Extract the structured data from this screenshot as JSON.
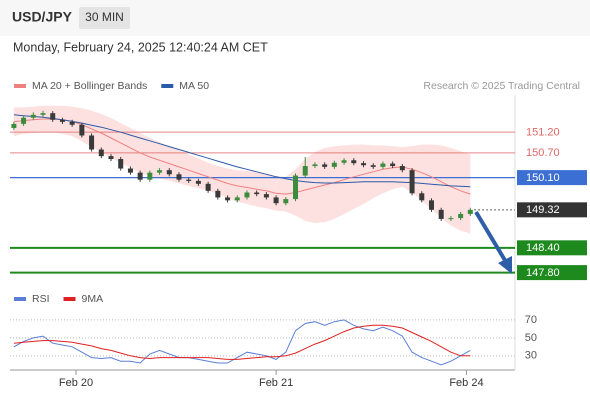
{
  "header": {
    "symbol": "USD/JPY",
    "timeframe": "30 MIN",
    "datetime": "Monday, February 24, 2025 12:40:24 AM CET",
    "copyright": "Research © 2025 Trading Central"
  },
  "chart_data": [
    {
      "type": "candlestick",
      "up_color": "#3d8b3d",
      "down_color": "#3a3a3a",
      "xlim": [
        -0.4,
        51.6
      ],
      "ylim": [
        147.5,
        152.1
      ],
      "candles": [
        [
          151.3,
          151.45,
          151.25,
          151.4
        ],
        [
          151.4,
          151.6,
          151.35,
          151.55
        ],
        [
          151.55,
          151.68,
          151.5,
          151.62
        ],
        [
          151.62,
          151.72,
          151.57,
          151.66
        ],
        [
          151.66,
          151.71,
          151.45,
          151.5
        ],
        [
          151.5,
          151.55,
          151.4,
          151.45
        ],
        [
          151.45,
          151.5,
          151.33,
          151.38
        ],
        [
          151.38,
          151.43,
          151.07,
          151.12
        ],
        [
          151.12,
          151.17,
          150.73,
          150.78
        ],
        [
          150.78,
          150.83,
          150.57,
          150.62
        ],
        [
          150.62,
          150.67,
          150.5,
          150.55
        ],
        [
          150.55,
          150.6,
          150.27,
          150.32
        ],
        [
          150.32,
          150.37,
          150.17,
          150.22
        ],
        [
          150.22,
          150.27,
          150.0,
          150.05
        ],
        [
          150.05,
          150.27,
          150.0,
          150.22
        ],
        [
          150.22,
          150.33,
          150.17,
          150.28
        ],
        [
          150.28,
          150.33,
          150.13,
          150.18
        ],
        [
          150.18,
          150.23,
          150.0,
          150.05
        ],
        [
          150.05,
          150.1,
          149.97,
          150.02
        ],
        [
          150.02,
          150.07,
          149.9,
          149.95
        ],
        [
          149.95,
          150.0,
          149.73,
          149.78
        ],
        [
          149.78,
          149.83,
          149.57,
          149.62
        ],
        [
          149.62,
          149.67,
          149.5,
          149.55
        ],
        [
          149.55,
          149.67,
          149.5,
          149.62
        ],
        [
          149.62,
          149.79,
          149.57,
          149.74
        ],
        [
          149.74,
          149.79,
          149.65,
          149.7
        ],
        [
          149.7,
          149.75,
          149.57,
          149.62
        ],
        [
          149.62,
          149.67,
          149.43,
          149.48
        ],
        [
          149.48,
          149.63,
          149.43,
          149.58
        ],
        [
          149.58,
          150.2,
          149.53,
          150.15
        ],
        [
          150.15,
          150.6,
          150.1,
          150.38
        ],
        [
          150.38,
          150.47,
          150.33,
          150.42
        ],
        [
          150.42,
          150.47,
          150.31,
          150.36
        ],
        [
          150.36,
          150.51,
          150.31,
          150.46
        ],
        [
          150.46,
          150.57,
          150.41,
          150.52
        ],
        [
          150.52,
          150.57,
          150.4,
          150.45
        ],
        [
          150.45,
          150.5,
          150.35,
          150.4
        ],
        [
          150.4,
          150.45,
          150.31,
          150.36
        ],
        [
          150.36,
          150.49,
          150.31,
          150.44
        ],
        [
          150.44,
          150.49,
          150.33,
          150.38
        ],
        [
          150.38,
          150.43,
          150.23,
          150.28
        ],
        [
          150.28,
          150.33,
          149.67,
          149.72
        ],
        [
          149.72,
          149.77,
          149.5,
          149.55
        ],
        [
          149.55,
          149.6,
          149.27,
          149.32
        ],
        [
          149.32,
          149.37,
          149.05,
          149.1
        ],
        [
          149.1,
          149.17,
          149.05,
          149.12
        ],
        [
          149.12,
          149.27,
          149.07,
          149.22
        ],
        [
          149.22,
          149.37,
          149.17,
          149.32
        ]
      ],
      "series": [
        {
          "name": "MA 20 + Bollinger Bands",
          "color": "#f08080",
          "band_color": "#fde0e0",
          "values": [
            151.45,
            151.48,
            151.5,
            151.52,
            151.52,
            151.5,
            151.46,
            151.38,
            151.28,
            151.18,
            151.06,
            150.94,
            150.82,
            150.7,
            150.6,
            150.52,
            150.44,
            150.36,
            150.28,
            150.2,
            150.12,
            150.04,
            149.96,
            149.9,
            149.86,
            149.82,
            149.78,
            149.72,
            149.7,
            149.74,
            149.8,
            149.86,
            149.92,
            149.98,
            150.05,
            150.12,
            150.18,
            150.24,
            150.3,
            150.34,
            150.36,
            150.3,
            150.22,
            150.12,
            150.0,
            149.88,
            149.78,
            149.7
          ],
          "upper": [
            151.8,
            151.8,
            151.82,
            151.84,
            151.84,
            151.84,
            151.82,
            151.78,
            151.72,
            151.64,
            151.54,
            151.42,
            151.3,
            151.18,
            151.06,
            150.96,
            150.86,
            150.76,
            150.66,
            150.56,
            150.46,
            150.38,
            150.32,
            150.28,
            150.26,
            150.24,
            150.2,
            150.14,
            150.12,
            150.3,
            150.55,
            150.72,
            150.82,
            150.86,
            150.88,
            150.9,
            150.9,
            150.88,
            150.88,
            150.86,
            150.84,
            150.86,
            150.9,
            150.9,
            150.88,
            150.82,
            150.74,
            150.66
          ],
          "lower": [
            151.1,
            151.16,
            151.18,
            151.2,
            151.2,
            151.16,
            151.1,
            150.98,
            150.84,
            150.72,
            150.58,
            150.46,
            150.34,
            150.22,
            150.14,
            150.08,
            150.02,
            149.96,
            149.9,
            149.84,
            149.78,
            149.7,
            149.6,
            149.52,
            149.46,
            149.4,
            149.36,
            149.3,
            149.28,
            149.18,
            149.05,
            149.0,
            149.02,
            149.1,
            149.22,
            149.34,
            149.46,
            149.6,
            149.72,
            149.82,
            149.88,
            149.74,
            149.54,
            149.34,
            149.12,
            148.94,
            148.82,
            148.74
          ]
        },
        {
          "name": "MA 50",
          "color": "#2b5aa8",
          "values": [
            151.62,
            151.6,
            151.58,
            151.56,
            151.53,
            151.5,
            151.46,
            151.42,
            151.37,
            151.32,
            151.26,
            151.2,
            151.13,
            151.06,
            150.99,
            150.92,
            150.85,
            150.78,
            150.71,
            150.64,
            150.57,
            150.5,
            150.43,
            150.36,
            150.3,
            150.24,
            150.18,
            150.12,
            150.07,
            150.03,
            150.0,
            149.98,
            149.97,
            149.97,
            149.98,
            149.99,
            150.0,
            150.0,
            150.0,
            150.0,
            149.99,
            149.98,
            149.96,
            149.94,
            149.92,
            149.9,
            149.89,
            149.88
          ]
        }
      ],
      "levels": [
        {
          "value": 151.2,
          "label": "151.20",
          "color": "#e06666",
          "style": "resistance"
        },
        {
          "value": 150.7,
          "label": "150.70",
          "color": "#e06666",
          "style": "resistance"
        },
        {
          "value": 150.1,
          "label": "150.10",
          "color": "#3b6fd4",
          "style": "pivot"
        },
        {
          "value": 149.32,
          "label": "149.32",
          "color": "#333333",
          "style": "last"
        },
        {
          "value": 148.4,
          "label": "148.40",
          "color": "#1e8a1e",
          "style": "support"
        },
        {
          "value": 147.8,
          "label": "147.80",
          "color": "#1e8a1e",
          "style": "support"
        }
      ]
    },
    {
      "type": "line",
      "xlim": [
        -0.4,
        51.6
      ],
      "ylim": [
        12,
        81
      ],
      "yticks": [
        30,
        50,
        70
      ],
      "xticks": [
        {
          "value": 6.4,
          "label": "Feb 20"
        },
        {
          "value": 27,
          "label": "Feb 21"
        },
        {
          "value": 46.6,
          "label": "Feb 24"
        }
      ],
      "series": [
        {
          "name": "RSI",
          "color": "#5b7fd6",
          "values": [
            40,
            46,
            50,
            52,
            44,
            42,
            40,
            34,
            28,
            27,
            28,
            24,
            24,
            22,
            32,
            36,
            32,
            28,
            28,
            26,
            24,
            22,
            22,
            28,
            34,
            32,
            30,
            26,
            34,
            58,
            66,
            68,
            64,
            68,
            70,
            64,
            60,
            58,
            62,
            58,
            52,
            34,
            28,
            24,
            20,
            24,
            30,
            36
          ]
        },
        {
          "name": "9MA",
          "color": "#e02020",
          "values": [
            44,
            45,
            46,
            47,
            47,
            46,
            45,
            43,
            41,
            38,
            36,
            33,
            30,
            28,
            27,
            28,
            28,
            28,
            28,
            28,
            28,
            27,
            26,
            26,
            27,
            28,
            29,
            29,
            30,
            33,
            38,
            43,
            47,
            52,
            57,
            61,
            63,
            64,
            64,
            63,
            61,
            56,
            51,
            46,
            40,
            34,
            30,
            30
          ]
        }
      ]
    }
  ]
}
